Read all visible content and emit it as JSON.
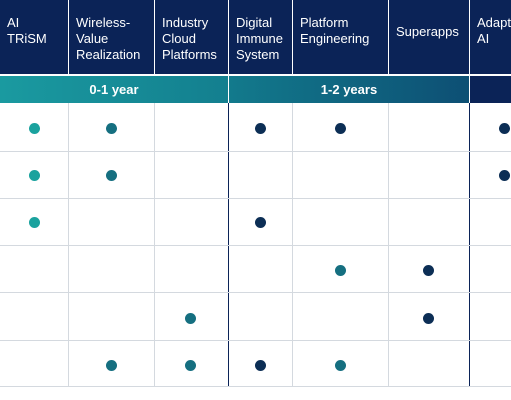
{
  "columns": [
    {
      "lines": [
        "AI",
        "TRiSM"
      ]
    },
    {
      "lines": [
        "Wireless-",
        "Value",
        "Realization"
      ]
    },
    {
      "lines": [
        "Industry",
        "Cloud",
        "Platforms"
      ]
    },
    {
      "lines": [
        "Digital",
        "Immune",
        "System"
      ]
    },
    {
      "lines": [
        "Platform",
        "Engineering"
      ]
    },
    {
      "lines": [
        "Superapps"
      ]
    },
    {
      "lines": [
        "Adapt",
        "AI"
      ]
    }
  ],
  "bands": {
    "first": "0-1 year",
    "second": "1-2 years",
    "third": ""
  },
  "colors": {
    "header_bg": "#0b2357",
    "dot_teal": "#1aa29e",
    "dot_mid": "#156f80",
    "dot_navy": "#0c2e55",
    "grid": "#d4d9df"
  },
  "grid": {
    "rows": [
      [
        true,
        true,
        false,
        true,
        true,
        false,
        true
      ],
      [
        true,
        true,
        false,
        false,
        false,
        false,
        true
      ],
      [
        true,
        false,
        false,
        true,
        false,
        false,
        false
      ],
      [
        false,
        false,
        false,
        false,
        true,
        true,
        false
      ],
      [
        false,
        false,
        true,
        false,
        false,
        true,
        false
      ],
      [
        false,
        true,
        true,
        true,
        true,
        false,
        false
      ]
    ]
  }
}
